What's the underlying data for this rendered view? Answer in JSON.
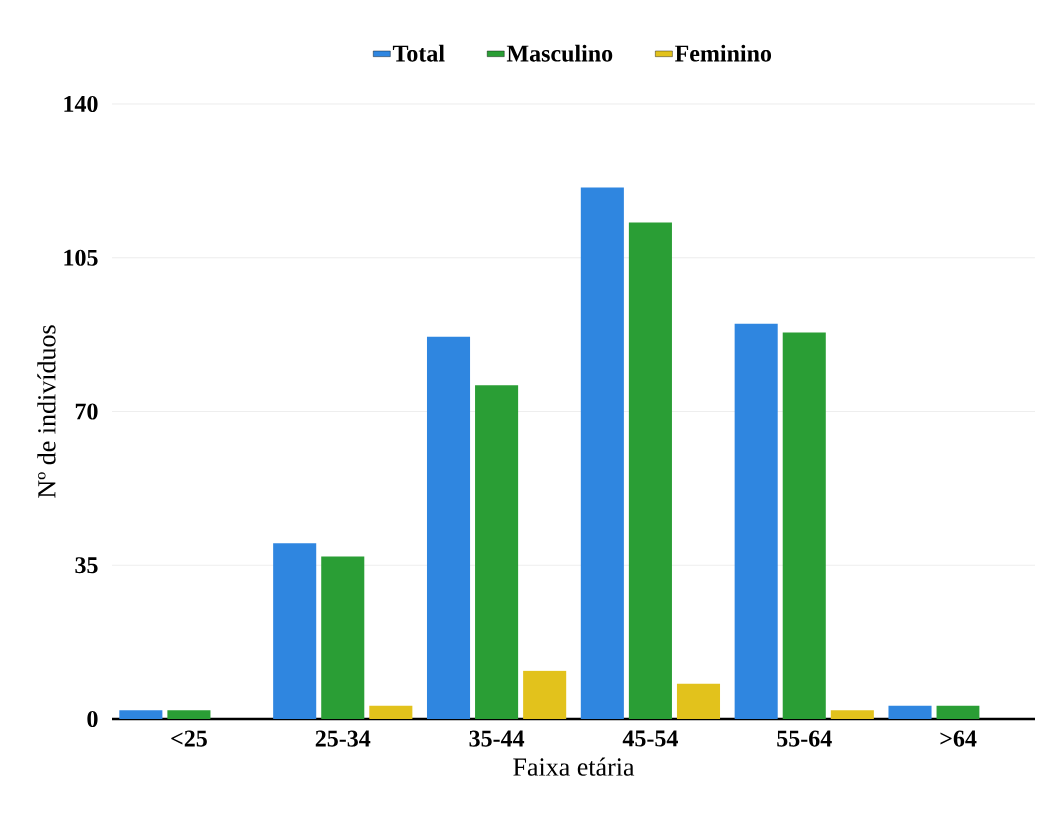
{
  "chart_data": {
    "type": "bar",
    "xlabel": "Faixa etária",
    "ylabel": "Nº de indivíduos",
    "categories": [
      "<25",
      "25-34",
      "35-44",
      "45-54",
      "55-64",
      ">64"
    ],
    "series": [
      {
        "name": "Total",
        "color": "#2f86e0",
        "values": [
          2,
          40,
          87,
          121,
          90,
          3
        ]
      },
      {
        "name": "Masculino",
        "color": "#2a9e35",
        "values": [
          2,
          37,
          76,
          113,
          88,
          3
        ]
      },
      {
        "name": "Feminino",
        "color": "#e2c21c",
        "values": [
          0,
          3,
          11,
          8,
          2,
          null
        ]
      }
    ],
    "ylim": [
      0,
      140
    ],
    "yticks": [
      0,
      35,
      70,
      105,
      140
    ],
    "grid": "y",
    "legend": "top"
  }
}
